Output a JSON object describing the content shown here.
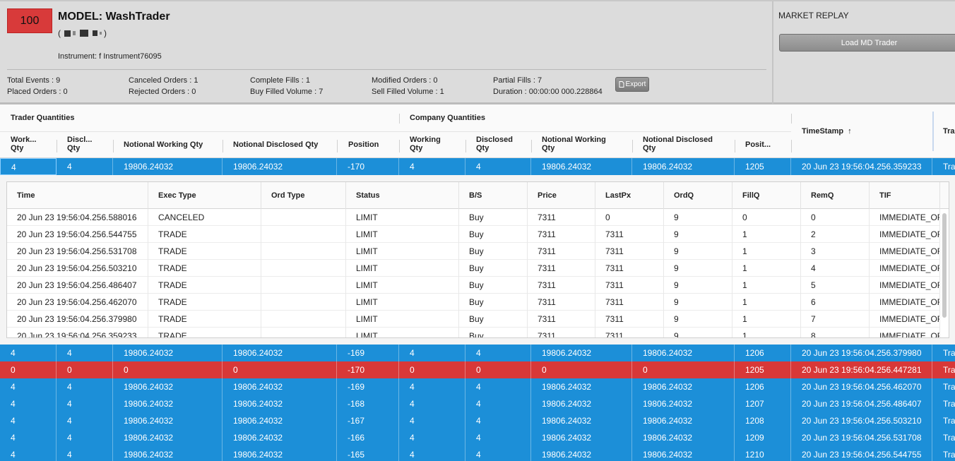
{
  "header": {
    "score": "100",
    "model_title": "MODEL: WashTrader",
    "redacted_prefix": "(",
    "redacted_suffix": ")",
    "instrument": "Instrument: f Instrument76095",
    "stats": {
      "total_events": "Total Events : 9",
      "placed_orders": "Placed Orders : 0",
      "canceled_orders": "Canceled Orders : 1",
      "rejected_orders": "Rejected Orders : 0",
      "complete_fills": "Complete Fills : 1",
      "buy_filled_volume": "Buy Filled Volume : 7",
      "modified_orders": "Modified Orders : 0",
      "sell_filled_volume": "Sell Filled Volume : 1",
      "partial_fills": "Partial Fills : 7",
      "duration": "Duration : 00:00:00 000.228864"
    },
    "export_label": "Export",
    "replay_title": "MARKET REPLAY",
    "load_md_label": "Load MD Trader",
    "badge_color": "#d83a3a"
  },
  "grid": {
    "group_trader": "Trader Quantities",
    "group_company": "Company Quantities",
    "columns": {
      "working": "Work...\nQty",
      "disclosed": "Discl...\nQty",
      "notional_working": "Notional Working Qty",
      "notional_disclosed": "Notional Disclosed Qty",
      "position": "Position",
      "c_working": "Working\nQty",
      "c_disclosed": "Disclosed\nQty",
      "c_notional_working": "Notional Working\nQty",
      "c_notional_disclosed": "Notional Disclosed\nQty",
      "c_position": "Posit...",
      "timestamp": "TimeStamp",
      "trader": "Tra"
    },
    "rows": [
      {
        "w": "4",
        "d": "4",
        "nw": "19806.24032",
        "nd": "19806.24032",
        "p": "-170",
        "cw": "4",
        "cd": "4",
        "cnw": "19806.24032",
        "cnd": "19806.24032",
        "cp": "1205",
        "ts": "20 Jun 23 19:56:04.256.359233",
        "tr": "Tra",
        "color": "blue"
      },
      {
        "w": "4",
        "d": "4",
        "nw": "19806.24032",
        "nd": "19806.24032",
        "p": "-169",
        "cw": "4",
        "cd": "4",
        "cnw": "19806.24032",
        "cnd": "19806.24032",
        "cp": "1206",
        "ts": "20 Jun 23 19:56:04.256.379980",
        "tr": "Tra",
        "color": "blue"
      },
      {
        "w": "0",
        "d": "0",
        "nw": "0",
        "nd": "0",
        "p": "-170",
        "cw": "0",
        "cd": "0",
        "cnw": "0",
        "cnd": "0",
        "cp": "1205",
        "ts": "20 Jun 23 19:56:04.256.447281",
        "tr": "Tra",
        "color": "red"
      },
      {
        "w": "4",
        "d": "4",
        "nw": "19806.24032",
        "nd": "19806.24032",
        "p": "-169",
        "cw": "4",
        "cd": "4",
        "cnw": "19806.24032",
        "cnd": "19806.24032",
        "cp": "1206",
        "ts": "20 Jun 23 19:56:04.256.462070",
        "tr": "Tra",
        "color": "blue"
      },
      {
        "w": "4",
        "d": "4",
        "nw": "19806.24032",
        "nd": "19806.24032",
        "p": "-168",
        "cw": "4",
        "cd": "4",
        "cnw": "19806.24032",
        "cnd": "19806.24032",
        "cp": "1207",
        "ts": "20 Jun 23 19:56:04.256.486407",
        "tr": "Tra",
        "color": "blue"
      },
      {
        "w": "4",
        "d": "4",
        "nw": "19806.24032",
        "nd": "19806.24032",
        "p": "-167",
        "cw": "4",
        "cd": "4",
        "cnw": "19806.24032",
        "cnd": "19806.24032",
        "cp": "1208",
        "ts": "20 Jun 23 19:56:04.256.503210",
        "tr": "Tra",
        "color": "blue"
      },
      {
        "w": "4",
        "d": "4",
        "nw": "19806.24032",
        "nd": "19806.24032",
        "p": "-166",
        "cw": "4",
        "cd": "4",
        "cnw": "19806.24032",
        "cnd": "19806.24032",
        "cp": "1209",
        "ts": "20 Jun 23 19:56:04.256.531708",
        "tr": "Tra",
        "color": "blue"
      },
      {
        "w": "4",
        "d": "4",
        "nw": "19806.24032",
        "nd": "19806.24032",
        "p": "-165",
        "cw": "4",
        "cd": "4",
        "cnw": "19806.24032",
        "cnd": "19806.24032",
        "cp": "1210",
        "ts": "20 Jun 23 19:56:04.256.544755",
        "tr": "Tra",
        "color": "blue"
      }
    ]
  },
  "detail": {
    "columns": [
      "Time",
      "Exec Type",
      "Ord Type",
      "Status",
      "B/S",
      "Price",
      "LastPx",
      "OrdQ",
      "FillQ",
      "RemQ",
      "TIF"
    ],
    "rows": [
      [
        "20 Jun 23 19:56:04.256.588016",
        "CANCELED",
        "",
        "LIMIT",
        "Buy",
        "7311",
        "0",
        "9",
        "0",
        "0",
        "IMMEDIATE_OR"
      ],
      [
        "20 Jun 23 19:56:04.256.544755",
        "TRADE",
        "",
        "LIMIT",
        "Buy",
        "7311",
        "7311",
        "9",
        "1",
        "2",
        "IMMEDIATE_OR"
      ],
      [
        "20 Jun 23 19:56:04.256.531708",
        "TRADE",
        "",
        "LIMIT",
        "Buy",
        "7311",
        "7311",
        "9",
        "1",
        "3",
        "IMMEDIATE_OR"
      ],
      [
        "20 Jun 23 19:56:04.256.503210",
        "TRADE",
        "",
        "LIMIT",
        "Buy",
        "7311",
        "7311",
        "9",
        "1",
        "4",
        "IMMEDIATE_OR"
      ],
      [
        "20 Jun 23 19:56:04.256.486407",
        "TRADE",
        "",
        "LIMIT",
        "Buy",
        "7311",
        "7311",
        "9",
        "1",
        "5",
        "IMMEDIATE_OR"
      ],
      [
        "20 Jun 23 19:56:04.256.462070",
        "TRADE",
        "",
        "LIMIT",
        "Buy",
        "7311",
        "7311",
        "9",
        "1",
        "6",
        "IMMEDIATE_OR"
      ],
      [
        "20 Jun 23 19:56:04.256.379980",
        "TRADE",
        "",
        "LIMIT",
        "Buy",
        "7311",
        "7311",
        "9",
        "1",
        "7",
        "IMMEDIATE_OR"
      ],
      [
        "20 Jun 23 19:56:04.256.359233",
        "TRADE",
        "",
        "LIMIT",
        "Buy",
        "7311",
        "7311",
        "9",
        "1",
        "8",
        "IMMEDIATE_OR"
      ]
    ]
  },
  "colors": {
    "row_blue": "#1c8fd8",
    "row_red": "#d83838"
  }
}
